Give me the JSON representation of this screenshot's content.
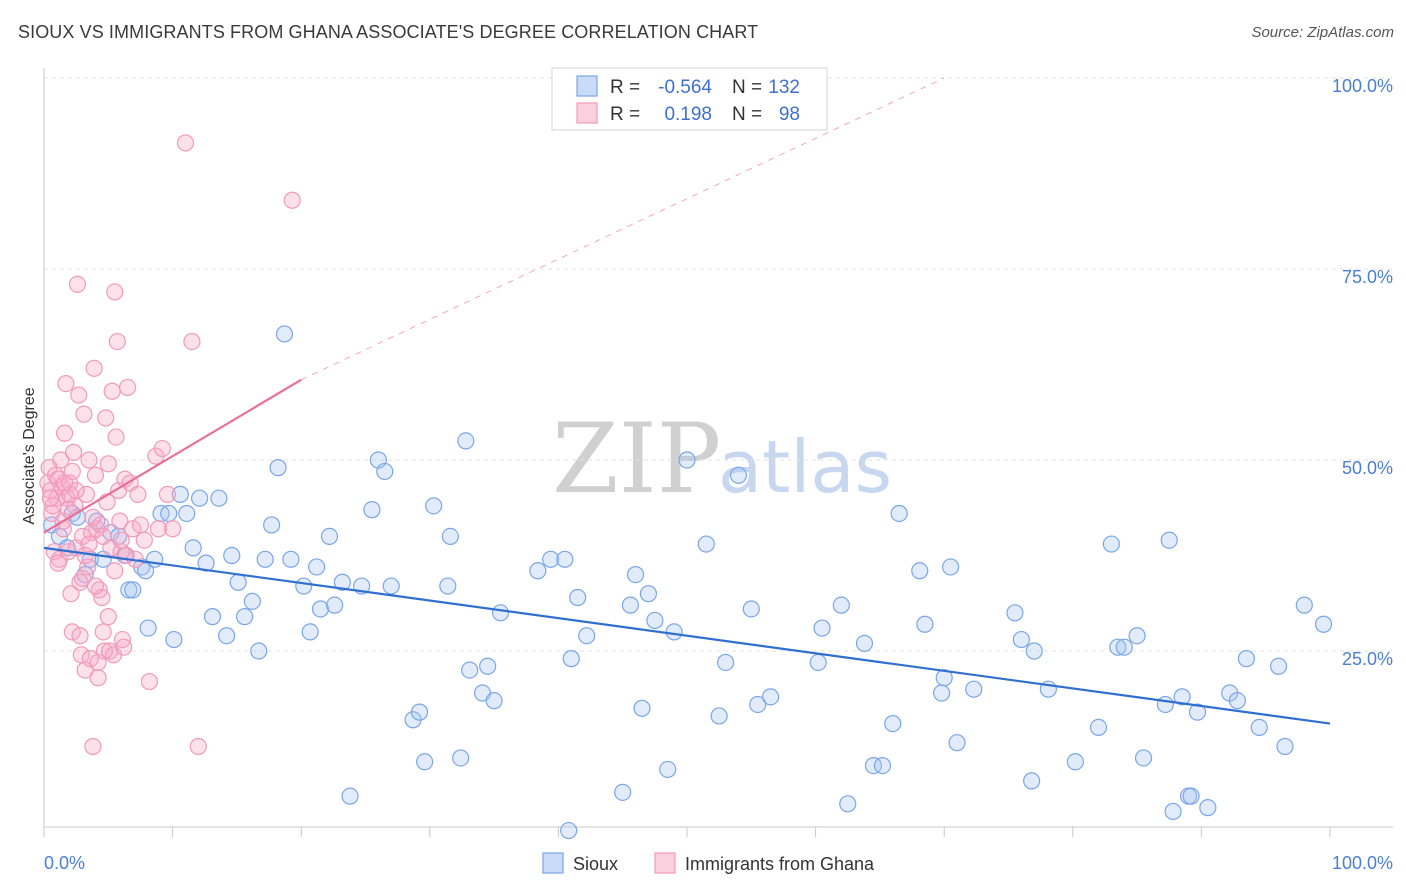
{
  "title": "SIOUX VS IMMIGRANTS FROM GHANA ASSOCIATE'S DEGREE CORRELATION CHART",
  "source": "Source: ZipAtlas.com",
  "watermark": {
    "zip": "ZIP",
    "atlas": "atlas"
  },
  "legend": {
    "rows": [
      {
        "r_label": "R =",
        "r_value": "-0.564",
        "n_label": "N =",
        "n_value": "132",
        "color": "#7aa6e8"
      },
      {
        "r_label": "R =",
        "r_value": "0.198",
        "n_label": "N =",
        "n_value": "98",
        "color": "#f29ab8"
      }
    ]
  },
  "bottom_legend": [
    {
      "label": "Sioux",
      "color": "#7aa6e8"
    },
    {
      "label": "Immigrants from Ghana",
      "color": "#f29ab8"
    }
  ],
  "chart_data": {
    "type": "scatter",
    "ylabel": "Associate's Degree",
    "xlabel": "",
    "xlim": [
      0,
      100
    ],
    "ylim": [
      0,
      100
    ],
    "x_tick_labels": [
      "0.0%",
      "100.0%"
    ],
    "y_tick_labels": [
      "25.0%",
      "50.0%",
      "75.0%",
      "100.0%"
    ],
    "y_tick_values": [
      25,
      50,
      75,
      100
    ],
    "grid": true,
    "series": [
      {
        "name": "Sioux",
        "color": "#7aa6e8",
        "line_color": "#2f6fd0",
        "trend": {
          "x": [
            0,
            100
          ],
          "y": [
            38.5,
            15.5
          ],
          "dashed_to": null
        },
        "points": [
          [
            0.6,
            41.5
          ],
          [
            1.2,
            40
          ],
          [
            1.8,
            38.5
          ],
          [
            2.2,
            43
          ],
          [
            2.6,
            42.5
          ],
          [
            3.2,
            35
          ],
          [
            3.6,
            37
          ],
          [
            4.1,
            42
          ],
          [
            4.6,
            37
          ],
          [
            5.2,
            40.5
          ],
          [
            5.8,
            40
          ],
          [
            6.3,
            37.5
          ],
          [
            6.6,
            33
          ],
          [
            6.9,
            33
          ],
          [
            7.6,
            36
          ],
          [
            7.9,
            35.5
          ],
          [
            8.1,
            28
          ],
          [
            8.6,
            37
          ],
          [
            9.1,
            43
          ],
          [
            9.7,
            43
          ],
          [
            10.1,
            26.5
          ],
          [
            10.6,
            45.5
          ],
          [
            11.1,
            43
          ],
          [
            11.6,
            38.5
          ],
          [
            12.1,
            45
          ],
          [
            12.6,
            36.5
          ],
          [
            13.1,
            29.5
          ],
          [
            13.6,
            45
          ],
          [
            14.2,
            27
          ],
          [
            14.6,
            37.5
          ],
          [
            15.1,
            34
          ],
          [
            15.6,
            29.5
          ],
          [
            16.2,
            31.5
          ],
          [
            16.7,
            25
          ],
          [
            17.2,
            37
          ],
          [
            17.7,
            41.5
          ],
          [
            18.2,
            49
          ],
          [
            18.7,
            66.5
          ],
          [
            19.2,
            37
          ],
          [
            20.2,
            33.5
          ],
          [
            20.7,
            27.5
          ],
          [
            21.2,
            36
          ],
          [
            21.5,
            30.5
          ],
          [
            22.2,
            40
          ],
          [
            22.6,
            31
          ],
          [
            23.2,
            34
          ],
          [
            23.8,
            6
          ],
          [
            24.7,
            33.5
          ],
          [
            25.5,
            43.5
          ],
          [
            26.0,
            50
          ],
          [
            26.5,
            48.5
          ],
          [
            27.0,
            33.5
          ],
          [
            28.7,
            16
          ],
          [
            29.2,
            17
          ],
          [
            29.6,
            10.5
          ],
          [
            30.3,
            44
          ],
          [
            31.4,
            33.5
          ],
          [
            31.6,
            40
          ],
          [
            32.4,
            11
          ],
          [
            32.8,
            52.5
          ],
          [
            33.1,
            22.5
          ],
          [
            34.1,
            19.5
          ],
          [
            34.5,
            23
          ],
          [
            35.0,
            18.5
          ],
          [
            35.5,
            30
          ],
          [
            38.4,
            35.5
          ],
          [
            39.4,
            37
          ],
          [
            40.5,
            37
          ],
          [
            40.8,
            1.5
          ],
          [
            41.0,
            24
          ],
          [
            41.5,
            32
          ],
          [
            42.2,
            27
          ],
          [
            45.0,
            6.5
          ],
          [
            45.6,
            31
          ],
          [
            46.0,
            35
          ],
          [
            46.5,
            17.5
          ],
          [
            47.0,
            32.5
          ],
          [
            47.5,
            29
          ],
          [
            48.5,
            9.5
          ],
          [
            49.0,
            27.5
          ],
          [
            50.0,
            50
          ],
          [
            51.5,
            39
          ],
          [
            52.5,
            16.5
          ],
          [
            53.0,
            23.5
          ],
          [
            54.0,
            48
          ],
          [
            55.5,
            18
          ],
          [
            55.0,
            30.5
          ],
          [
            56.5,
            19
          ],
          [
            60.2,
            23.5
          ],
          [
            60.5,
            28
          ],
          [
            62.0,
            31
          ],
          [
            62.5,
            5
          ],
          [
            63.8,
            26
          ],
          [
            64.5,
            10
          ],
          [
            65.2,
            10
          ],
          [
            66.0,
            15.5
          ],
          [
            66.5,
            43
          ],
          [
            68.1,
            35.5
          ],
          [
            68.5,
            28.5
          ],
          [
            70.0,
            21.5
          ],
          [
            70.5,
            36
          ],
          [
            69.8,
            19.5
          ],
          [
            71.0,
            13
          ],
          [
            72.3,
            20
          ],
          [
            75.5,
            30
          ],
          [
            76.0,
            26.5
          ],
          [
            77.0,
            25
          ],
          [
            76.8,
            8
          ],
          [
            78.1,
            20
          ],
          [
            80.2,
            10.5
          ],
          [
            82.0,
            15
          ],
          [
            83.0,
            39
          ],
          [
            83.5,
            25.5
          ],
          [
            84.0,
            25.5
          ],
          [
            85.0,
            27
          ],
          [
            85.5,
            11
          ],
          [
            87.2,
            18
          ],
          [
            87.5,
            39.5
          ],
          [
            87.8,
            4
          ],
          [
            88.5,
            19
          ],
          [
            89.0,
            6
          ],
          [
            89.2,
            6
          ],
          [
            89.7,
            17
          ],
          [
            90.5,
            4.5
          ],
          [
            92.2,
            19.5
          ],
          [
            92.8,
            18.5
          ],
          [
            93.5,
            24
          ],
          [
            94.5,
            15
          ],
          [
            96.0,
            23
          ],
          [
            96.5,
            12.5
          ],
          [
            98.0,
            31
          ],
          [
            99.5,
            28.5
          ]
        ]
      },
      {
        "name": "Immigrants from Ghana",
        "color": "#f29ab8",
        "line_color": "#e8709a",
        "trend": {
          "x": [
            0,
            20
          ],
          "y": [
            40.5,
            60.5
          ],
          "dashed_to": [
            70,
            100
          ]
        },
        "points": [
          [
            0.3,
            47
          ],
          [
            0.4,
            49
          ],
          [
            0.5,
            46
          ],
          [
            0.6,
            43
          ],
          [
            0.8,
            38
          ],
          [
            0.9,
            48
          ],
          [
            1.0,
            45
          ],
          [
            1.1,
            47.5
          ],
          [
            1.2,
            37
          ],
          [
            1.3,
            50
          ],
          [
            1.4,
            46.5
          ],
          [
            1.5,
            41
          ],
          [
            1.6,
            53.5
          ],
          [
            1.7,
            60
          ],
          [
            1.8,
            45
          ],
          [
            1.9,
            38
          ],
          [
            2.0,
            47
          ],
          [
            2.1,
            32.5
          ],
          [
            2.2,
            27.5
          ],
          [
            2.3,
            51
          ],
          [
            2.4,
            44
          ],
          [
            2.5,
            38.5
          ],
          [
            2.6,
            73
          ],
          [
            2.7,
            58.5
          ],
          [
            2.8,
            34
          ],
          [
            2.9,
            24.5
          ],
          [
            3.0,
            40
          ],
          [
            3.1,
            56
          ],
          [
            3.2,
            22.5
          ],
          [
            3.3,
            45.5
          ],
          [
            3.4,
            36
          ],
          [
            3.5,
            50
          ],
          [
            3.6,
            24
          ],
          [
            3.7,
            40.5
          ],
          [
            3.8,
            12.5
          ],
          [
            3.9,
            62
          ],
          [
            4.0,
            48
          ],
          [
            4.1,
            41
          ],
          [
            4.2,
            21.5
          ],
          [
            4.3,
            33
          ],
          [
            4.4,
            41.5
          ],
          [
            4.5,
            32
          ],
          [
            4.6,
            27.5
          ],
          [
            4.7,
            25
          ],
          [
            4.8,
            55.5
          ],
          [
            4.9,
            44.5
          ],
          [
            5.0,
            49.5
          ],
          [
            5.1,
            25
          ],
          [
            5.2,
            38.5
          ],
          [
            5.3,
            59
          ],
          [
            5.4,
            24.5
          ],
          [
            5.5,
            72
          ],
          [
            5.6,
            53
          ],
          [
            5.7,
            65.5
          ],
          [
            5.8,
            46
          ],
          [
            5.9,
            42
          ],
          [
            6.0,
            38
          ],
          [
            6.1,
            26.5
          ],
          [
            6.2,
            25.5
          ],
          [
            6.3,
            47.5
          ],
          [
            6.4,
            37.5
          ],
          [
            6.5,
            59.5
          ],
          [
            6.7,
            47
          ],
          [
            6.9,
            41
          ],
          [
            7.1,
            37
          ],
          [
            7.3,
            45.5
          ],
          [
            7.5,
            41.5
          ],
          [
            7.8,
            39.5
          ],
          [
            8.2,
            21
          ],
          [
            8.7,
            50.5
          ],
          [
            9.2,
            51.5
          ],
          [
            9.6,
            45.5
          ],
          [
            10.0,
            41
          ],
          [
            11.0,
            91.5
          ],
          [
            11.5,
            65.5
          ],
          [
            12.0,
            12.5
          ],
          [
            8.9,
            41
          ],
          [
            2.0,
            45.5
          ],
          [
            3.0,
            34.5
          ],
          [
            1.5,
            42
          ],
          [
            0.7,
            44
          ],
          [
            1.1,
            36.5
          ],
          [
            2.8,
            27
          ],
          [
            3.5,
            39
          ],
          [
            4.2,
            23.5
          ],
          [
            5.0,
            29.5
          ],
          [
            5.5,
            35.5
          ],
          [
            6.0,
            39.5
          ],
          [
            1.9,
            43.5
          ],
          [
            2.5,
            46
          ],
          [
            3.8,
            42.5
          ],
          [
            4.6,
            40
          ],
          [
            0.5,
            45
          ],
          [
            1.6,
            47
          ],
          [
            2.2,
            48.5
          ],
          [
            19.3,
            84
          ],
          [
            3.2,
            37.5
          ],
          [
            4.0,
            33.5
          ]
        ]
      }
    ]
  }
}
